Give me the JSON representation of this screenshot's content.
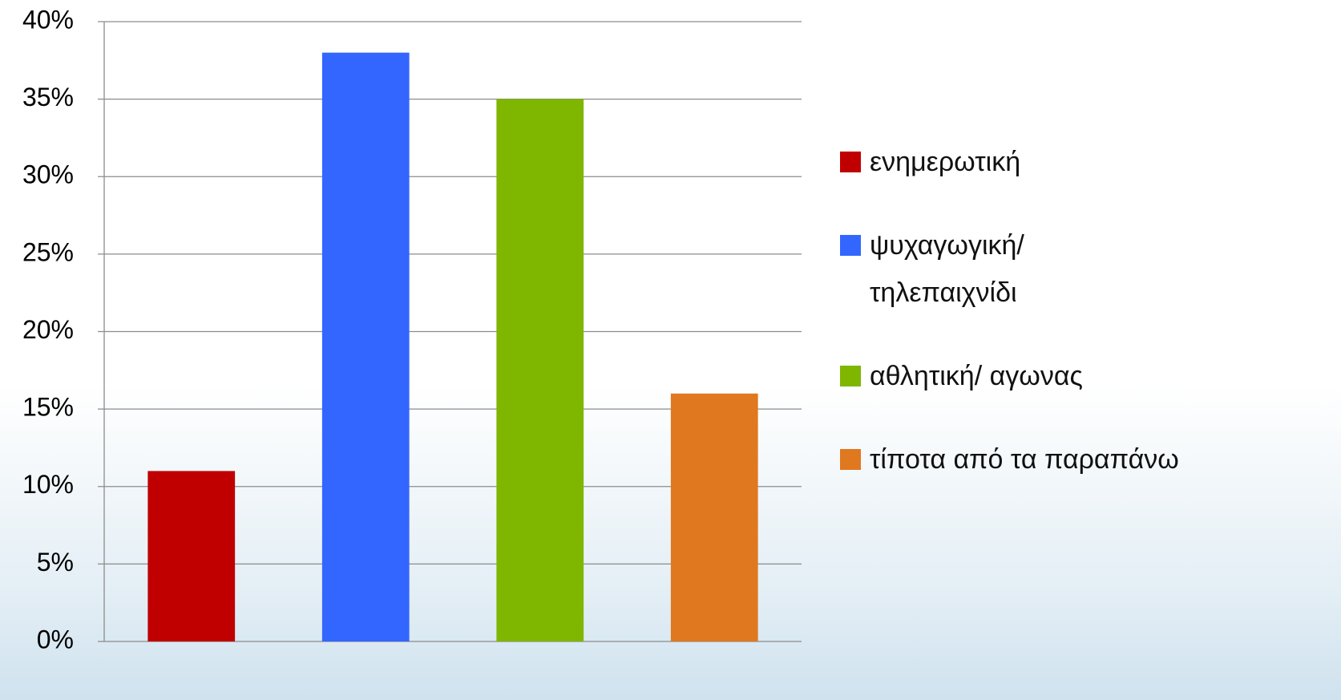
{
  "chart_data": {
    "type": "bar",
    "categories": [
      null
    ],
    "series": [
      {
        "name": "ενημερωτική",
        "color": "#c00000",
        "values": [
          11
        ]
      },
      {
        "name": "ψυχαγωγική/ τηλεπαιχνίδι",
        "color": "#3366ff",
        "values": [
          38
        ]
      },
      {
        "name": "αθλητική/ αγωνας",
        "color": "#7fb600",
        "values": [
          35
        ]
      },
      {
        "name": "τίποτα από τα παραπάνω",
        "color": "#e07820",
        "values": [
          16
        ]
      }
    ],
    "ylim": [
      0,
      40
    ],
    "yticks": [
      {
        "value": 0,
        "label": "0%"
      },
      {
        "value": 5,
        "label": "5%"
      },
      {
        "value": 10,
        "label": "10%"
      },
      {
        "value": 15,
        "label": "15%"
      },
      {
        "value": 20,
        "label": "20%"
      },
      {
        "value": 25,
        "label": "25%"
      },
      {
        "value": 30,
        "label": "30%"
      },
      {
        "value": 35,
        "label": "35%"
      },
      {
        "value": 40,
        "label": "40%"
      }
    ],
    "grid": true,
    "legend": "right"
  }
}
